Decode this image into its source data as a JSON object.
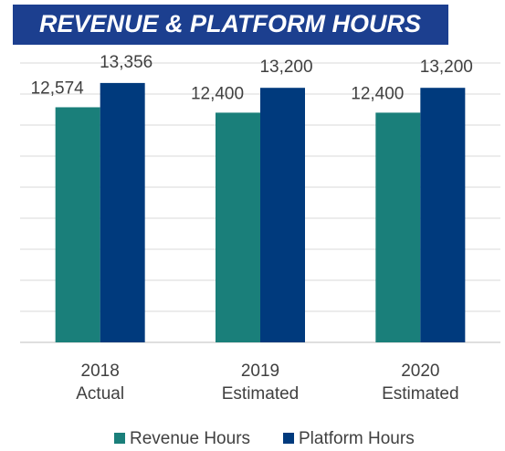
{
  "chart_data": {
    "type": "bar",
    "title": "REVENUE & PLATFORM HOURS",
    "categories": [
      [
        "2018",
        "Actual"
      ],
      [
        "2019",
        "Estimated"
      ],
      [
        "2020",
        "Estimated"
      ]
    ],
    "series": [
      {
        "name": "Revenue Hours",
        "color": "#1a7f7a",
        "values": [
          12574,
          12400,
          12400
        ],
        "value_labels": [
          "12,574",
          "12,400",
          "12,400"
        ]
      },
      {
        "name": "Platform Hours",
        "color": "#003a7d",
        "values": [
          13356,
          13200,
          13200
        ],
        "value_labels": [
          "13,356",
          "13,200",
          "13,200"
        ]
      }
    ],
    "ylim": [
      5000,
      14000
    ],
    "yticks": [
      5000,
      6000,
      7000,
      8000,
      9000,
      10000,
      11000,
      12000,
      13000,
      14000
    ],
    "grid": true,
    "y_tick_labels": false,
    "legend": "bottom"
  }
}
